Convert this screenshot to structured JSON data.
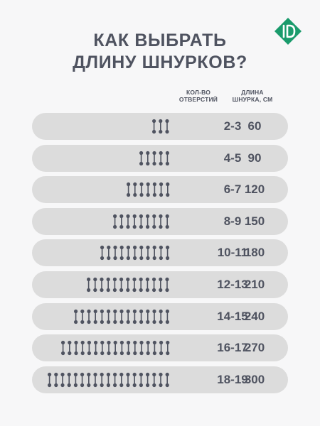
{
  "title": {
    "line1": "КАК ВЫБРАТЬ",
    "line2": "ДЛИНУ ШНУРКОВ?"
  },
  "header": {
    "holes_line1": "КОЛ-ВО",
    "holes_line2": "ОТВЕРСТИЙ",
    "length_line1": "ДЛИНА",
    "length_line2": "ШНУРКА, СМ"
  },
  "rows": [
    {
      "holes": "2-3",
      "length": "60",
      "pairs": 3
    },
    {
      "holes": "4-5",
      "length": "90",
      "pairs": 5
    },
    {
      "holes": "6-7",
      "length": "120",
      "pairs": 7
    },
    {
      "holes": "8-9",
      "length": "150",
      "pairs": 9
    },
    {
      "holes": "10-11",
      "length": "180",
      "pairs": 11
    },
    {
      "holes": "12-13",
      "length": "210",
      "pairs": 13
    },
    {
      "holes": "14-15",
      "length": "240",
      "pairs": 15
    },
    {
      "holes": "16-17",
      "length": "270",
      "pairs": 17
    },
    {
      "holes": "18-19",
      "length": "300",
      "pairs": 19
    }
  ],
  "colors": {
    "text": "#4f5360",
    "row": "#dcdcdc",
    "background": "#f7f7f8",
    "logo": "#1a9b6c"
  },
  "icons": {
    "brand": "brand-logo-icon",
    "lace": "lace-eyelets-icon"
  }
}
